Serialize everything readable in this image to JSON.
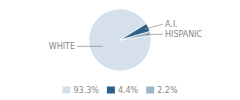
{
  "chart_data": {
    "type": "pie",
    "categories": [
      "WHITE",
      "A.I.",
      "HISPANIC"
    ],
    "values": [
      93.3,
      4.4,
      2.2
    ],
    "value_labels": [
      "93.3%",
      "4.4%",
      "2.2%"
    ],
    "colors": [
      "#d6e0ea",
      "#2d5f8a",
      "#9cb8c8"
    ],
    "legend": "bottom"
  }
}
